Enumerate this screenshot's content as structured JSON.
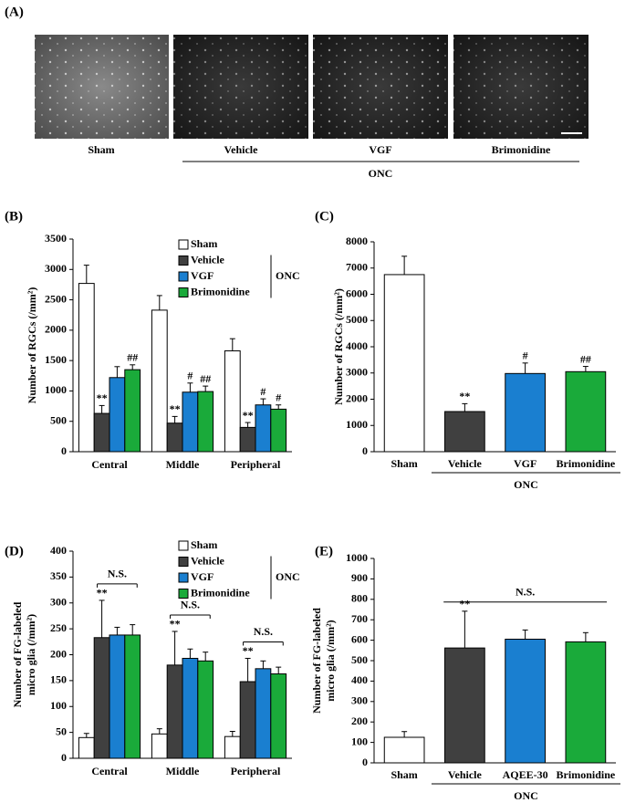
{
  "panel_a": {
    "label": "(A)",
    "images": [
      "Sham",
      "Vehicle",
      "VGF",
      "Brimonidine"
    ],
    "group_label": "ONC"
  },
  "chart_data": [
    {
      "type": "grouped_bar",
      "panel_label": "(B)",
      "y_label": [
        "Number of RGCs (/mm²)"
      ],
      "categories": [
        "Central",
        "Middle",
        "Peripheral"
      ],
      "series": [
        {
          "name": "Sham",
          "color": "#ffffff",
          "values": [
            2770,
            2330,
            1660
          ],
          "errors": [
            300,
            240,
            200
          ],
          "annotations": [
            null,
            null,
            null
          ]
        },
        {
          "name": "Vehicle",
          "color": "#404040",
          "values": [
            630,
            470,
            400
          ],
          "errors": [
            130,
            110,
            80
          ],
          "annotations": [
            "**",
            "**",
            "**"
          ]
        },
        {
          "name": "VGF",
          "color": "#1a7fd0",
          "values": [
            1220,
            980,
            770
          ],
          "errors": [
            180,
            150,
            100
          ],
          "annotations": [
            null,
            "#",
            "#"
          ]
        },
        {
          "name": "Brimonidine",
          "color": "#1aaa3a",
          "values": [
            1350,
            990,
            700
          ],
          "errors": [
            80,
            90,
            70
          ],
          "annotations": [
            "##",
            "##",
            "#"
          ]
        }
      ],
      "legend_group_label": "ONC",
      "ylim": [
        0,
        3500
      ],
      "yticks": [
        0,
        500,
        1000,
        1500,
        2000,
        2500,
        3000,
        3500
      ]
    },
    {
      "type": "bar",
      "panel_label": "(C)",
      "y_label": [
        "Number of RGCs (/mm²)"
      ],
      "categories": [
        "Sham",
        "Vehicle",
        "VGF",
        "Brimonidine"
      ],
      "values": [
        6750,
        1530,
        2980,
        3050
      ],
      "errors": [
        700,
        300,
        400,
        200
      ],
      "colors": [
        "#ffffff",
        "#404040",
        "#1a7fd0",
        "#1aaa3a"
      ],
      "annotations": [
        null,
        "**",
        "#",
        "##"
      ],
      "group_label": "ONC",
      "ylim": [
        0,
        8000
      ],
      "yticks": [
        0,
        1000,
        2000,
        3000,
        4000,
        5000,
        6000,
        7000,
        8000
      ]
    },
    {
      "type": "grouped_bar",
      "panel_label": "(D)",
      "y_label": [
        "Number of FG-labeled",
        "micro glia (/mm²)"
      ],
      "categories": [
        "Central",
        "Middle",
        "Peripheral"
      ],
      "series": [
        {
          "name": "Sham",
          "color": "#ffffff",
          "values": [
            40,
            47,
            42
          ],
          "errors": [
            8,
            10,
            10
          ],
          "annotations": [
            null,
            null,
            null
          ]
        },
        {
          "name": "Vehicle",
          "color": "#404040",
          "values": [
            233,
            180,
            148
          ],
          "errors": [
            72,
            65,
            45
          ],
          "annotations": [
            "**",
            "**",
            "**"
          ]
        },
        {
          "name": "VGF",
          "color": "#1a7fd0",
          "values": [
            238,
            193,
            173
          ],
          "errors": [
            15,
            18,
            15
          ],
          "annotations": [
            null,
            null,
            null
          ]
        },
        {
          "name": "Brimonidine",
          "color": "#1aaa3a",
          "values": [
            238,
            188,
            163
          ],
          "errors": [
            20,
            17,
            13
          ],
          "annotations": [
            null,
            null,
            null
          ]
        }
      ],
      "legend_group_label": "ONC",
      "significance_label": "N.S.",
      "ylim": [
        0,
        400
      ],
      "yticks": [
        0,
        50,
        100,
        150,
        200,
        250,
        300,
        350,
        400
      ]
    },
    {
      "type": "bar",
      "panel_label": "(E)",
      "y_label": [
        "Number of FG-labeled",
        "micro glia (/mm²)"
      ],
      "categories": [
        "Sham",
        "Vehicle",
        "AQEE-30",
        "Brimonidine"
      ],
      "values": [
        125,
        562,
        605,
        592
      ],
      "errors": [
        28,
        180,
        45,
        45
      ],
      "colors": [
        "#ffffff",
        "#404040",
        "#1a7fd0",
        "#1aaa3a"
      ],
      "annotations": [
        null,
        "**",
        null,
        null
      ],
      "group_label": "ONC",
      "significance_label": "N.S.",
      "ylim": [
        0,
        1000
      ],
      "yticks": [
        0,
        100,
        200,
        300,
        400,
        500,
        600,
        700,
        800,
        900,
        1000
      ]
    }
  ]
}
